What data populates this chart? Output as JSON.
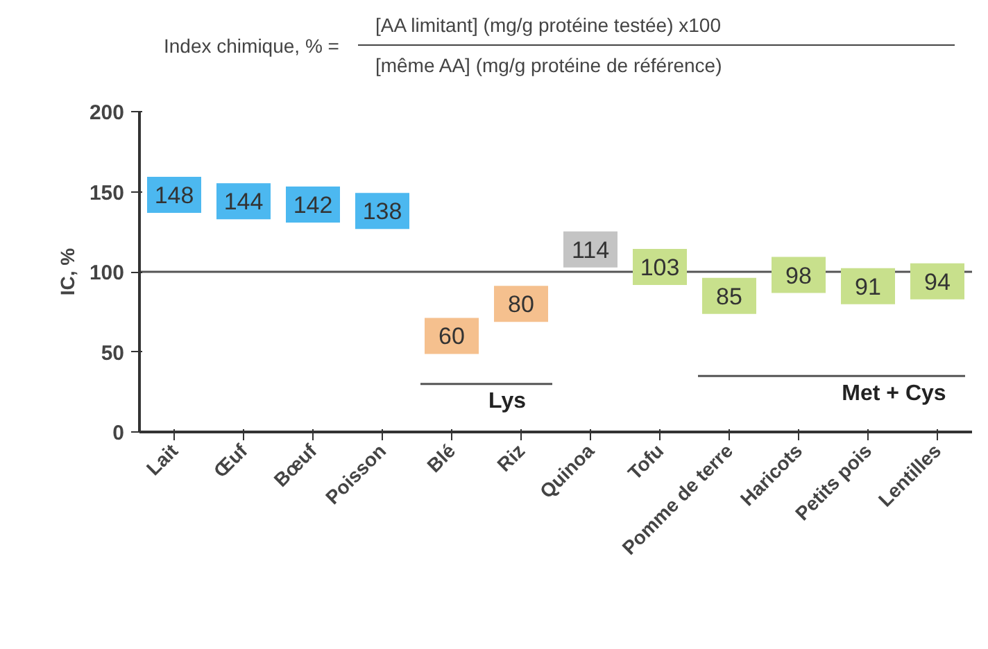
{
  "chart_data": {
    "type": "scatter",
    "marker": "square",
    "data_labels": true,
    "title": "Index chimique, % =",
    "subtitle": "[AA limitant] (mg/g protéine testée) x100",
    "annotations": [
      "[même AA] (mg/g protéine de référence)",
      "Lys",
      "Met + Cys"
    ],
    "ylabel": "IC, %",
    "categories": [
      "Lait",
      "Œuf",
      "Bœuf",
      "Poisson",
      "Blé",
      "Riz",
      "Quinoa",
      "Tofu",
      "Pomme de terre",
      "Haricots",
      "Petits pois",
      "Lentilles"
    ],
    "values": [
      148,
      144,
      142,
      138,
      60,
      80,
      114,
      103,
      85,
      98,
      91,
      94
    ],
    "colors": [
      "#4cb8f0",
      "#4cb8f0",
      "#4cb8f0",
      "#4cb8f0",
      "#f5c08e",
      "#f5c08e",
      "#c4c4c4",
      "#c8e08c",
      "#c8e08c",
      "#c8e08c",
      "#c8e08c",
      "#c8e08c"
    ],
    "ylim": [
      0,
      200
    ],
    "yticks": [
      0,
      50,
      100,
      150,
      200
    ],
    "grid": false,
    "ref_lines": [
      {
        "axis": "y",
        "value": 100,
        "color": "#555555"
      }
    ]
  }
}
